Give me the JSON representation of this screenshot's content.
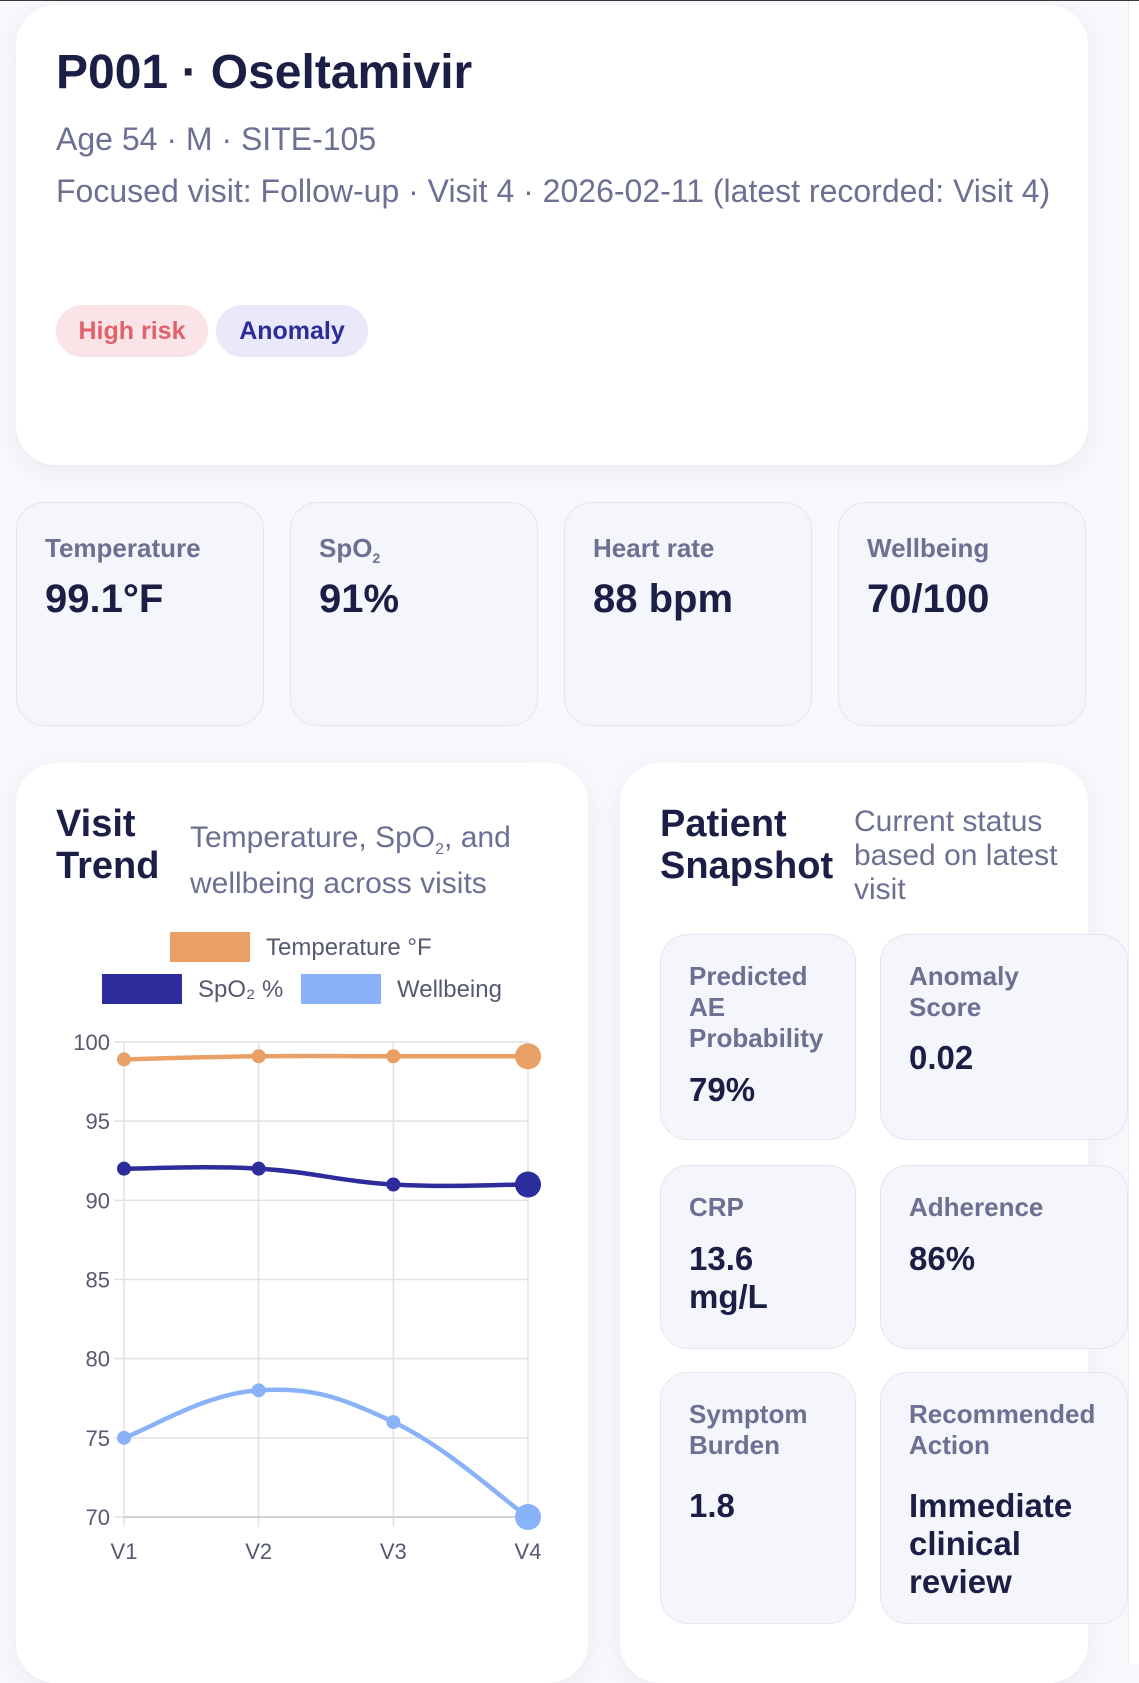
{
  "header": {
    "title": "P001 · Oseltamivir",
    "demographics": "Age 54 · M · SITE-105",
    "focused_visit": "Focused visit: Follow-up · Visit 4 · 2026-02-11 (latest recorded: Visit 4)",
    "badges": {
      "risk": "High risk",
      "anomaly": "Anomaly"
    }
  },
  "stats": {
    "temperature": {
      "label": "Temperature",
      "value": "99.1°F"
    },
    "spo2": {
      "label_base": "SpO",
      "label_sub": "2",
      "value": "91%"
    },
    "heart_rate": {
      "label": "Heart rate",
      "value": "88 bpm"
    },
    "wellbeing": {
      "label": "Wellbeing",
      "value": "70/100"
    }
  },
  "trend": {
    "title": "Visit Trend",
    "subtitle_part1": "Temperature, SpO",
    "subtitle_sub": "2",
    "subtitle_part2": ", and wellbeing across visits"
  },
  "snapshot": {
    "title": "Patient Snapshot",
    "subtitle": "Current status based on latest visit",
    "tiles": {
      "ae": {
        "label": "Predicted AE Probability",
        "value": "79%"
      },
      "anomaly": {
        "label": "Anomaly Score",
        "value": "0.02"
      },
      "crp": {
        "label": "CRP",
        "value": "13.6 mg/L"
      },
      "adherence": {
        "label": "Adherence",
        "value": "86%"
      },
      "symptom": {
        "label": "Symptom Burden",
        "value": "1.8"
      },
      "action": {
        "label": "Recommended Action",
        "value": "Immediate clinical review"
      }
    }
  },
  "chart_data": {
    "type": "line",
    "categories": [
      "V1",
      "V2",
      "V3",
      "V4"
    ],
    "series": [
      {
        "name": "Temperature °F",
        "color": "#e8a066",
        "values": [
          98.9,
          99.1,
          99.1,
          99.1
        ]
      },
      {
        "name": "SpO₂ %",
        "color": "#2c2c9c",
        "values": [
          92,
          92,
          91,
          91
        ]
      },
      {
        "name": "Wellbeing",
        "color": "#8ab2f8",
        "values": [
          75,
          78,
          76,
          70
        ]
      }
    ],
    "ylim": [
      70,
      100
    ],
    "yticks": [
      70,
      75,
      80,
      85,
      90,
      95,
      100
    ],
    "legend_position": "top",
    "grid": true
  }
}
